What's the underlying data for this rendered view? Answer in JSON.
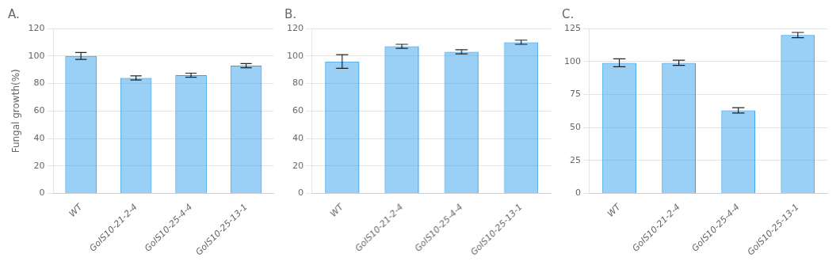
{
  "chart_data": [
    {
      "type": "bar",
      "title": "A.",
      "categories": [
        "WT",
        "GoIS10-21-2-4",
        "GoIS10-25-4-4",
        "GoIS10-25-13-1"
      ],
      "values": [
        100,
        84,
        86,
        93
      ],
      "errors": [
        2.5,
        1.5,
        1.5,
        1.5
      ],
      "ylim": [
        0,
        120
      ],
      "yticks": [
        0,
        20,
        40,
        60,
        80,
        100,
        120
      ],
      "ylabel": "Fungal growth(%)",
      "grid": true
    },
    {
      "type": "bar",
      "title": "B.",
      "categories": [
        "WT",
        "GoIS10-21-2-4",
        "GoIS10-25-4-4",
        "GoIS10-25-13-1"
      ],
      "values": [
        96,
        107,
        103,
        110
      ],
      "errors": [
        5,
        1.5,
        1.5,
        1.5
      ],
      "ylim": [
        0,
        120
      ],
      "yticks": [
        0,
        20,
        40,
        60,
        80,
        100,
        120
      ],
      "grid": true
    },
    {
      "type": "bar",
      "title": "C.",
      "categories": [
        "WT",
        "GoIS10-21-2-4",
        "GoIS10-25-4-4",
        "GoIS10-25-13-1"
      ],
      "values": [
        99,
        99,
        63,
        120
      ],
      "errors": [
        3,
        2,
        2,
        2
      ],
      "ylim": [
        0,
        125
      ],
      "yticks": [
        0,
        25,
        50,
        75,
        100,
        125
      ],
      "grid": true
    }
  ]
}
